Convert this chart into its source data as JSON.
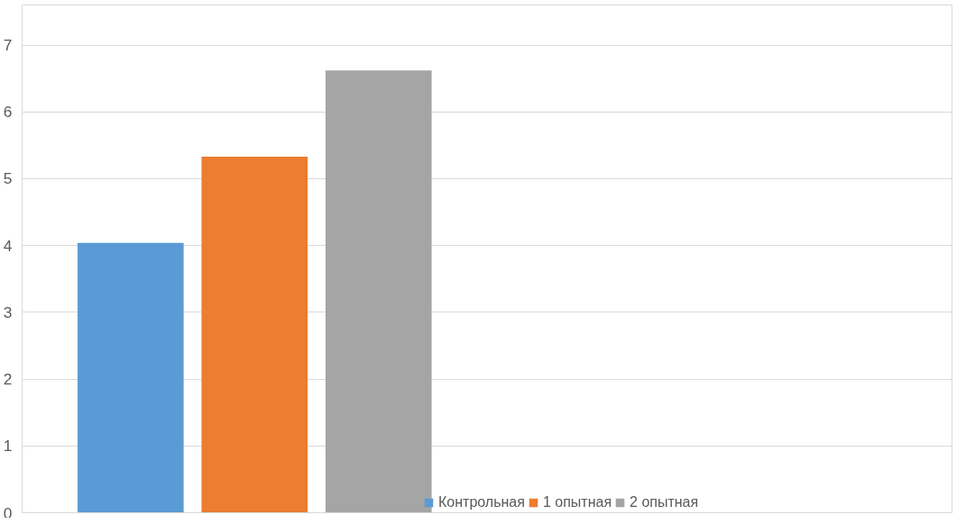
{
  "chart_data": {
    "type": "bar",
    "categories": [
      null,
      null
    ],
    "series": [
      {
        "name": "Контрольная",
        "color": "#5b9bd5",
        "values": [
          4.04,
          null
        ]
      },
      {
        "name": "1 опытная",
        "color": "#ed7d31",
        "values": [
          5.33,
          null
        ]
      },
      {
        "name": "2 опытная",
        "color": "#a5a5a5",
        "values": [
          6.62,
          null
        ]
      }
    ],
    "ylim": [
      0,
      7.6
    ],
    "yticks": [
      0,
      1,
      2,
      3,
      4,
      5,
      6,
      7
    ],
    "grid": "y",
    "legend": "bottom"
  }
}
